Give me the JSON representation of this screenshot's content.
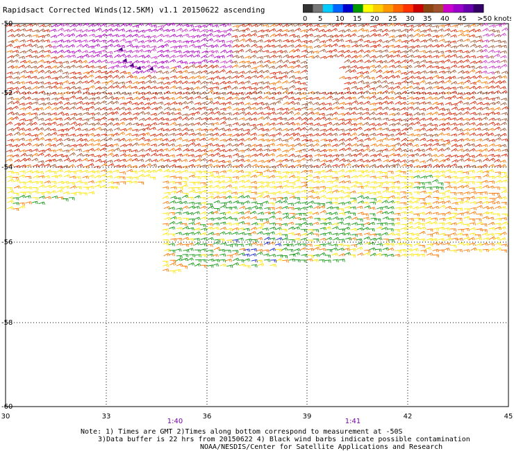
{
  "title": "Rapidsact Corrected Winds(12.5KM) v1.1 20150622 ascending",
  "legend": {
    "labels": [
      "0",
      "5",
      "10",
      "15",
      "20",
      "25",
      "30",
      "35",
      "40",
      "45",
      ">50 knots"
    ],
    "colors": [
      "#333333",
      "#777777",
      "#00ccff",
      "#0066ff",
      "#0000cc",
      "#009900",
      "#ffff00",
      "#ffcc00",
      "#ff9900",
      "#ff6600",
      "#ff3300",
      "#cc0000",
      "#8b4513",
      "#a0522d",
      "#cc00cc",
      "#9900cc",
      "#6600aa",
      "#330066"
    ]
  },
  "axes": {
    "lat_labels": [
      "-50",
      "-52",
      "-54",
      "-56",
      "-58",
      "-60"
    ],
    "lon_labels": [
      "30",
      "33",
      "36",
      "39",
      "42",
      "45"
    ],
    "time_labels": [
      "1:40",
      "1:41"
    ],
    "grid": true
  },
  "notes": {
    "line1": "Note: 1) Times are GMT 2)Times along bottom correspond to measurement at -50S",
    "line2": "3)Data buffer is 22 hrs from 20150622 4) Black wind barbs indicate possible contamination",
    "credit": "NOAA/NESDIS/Center for Satellite Applications and Research"
  },
  "wind_colors": {
    "purple": "#b000c8",
    "magenta": "#cc33cc",
    "brown": "#a0522d",
    "red": "#dd2200",
    "orange": "#ff7700",
    "yellow": "#ffe600",
    "green": "#119911",
    "blue": "#1122cc"
  }
}
